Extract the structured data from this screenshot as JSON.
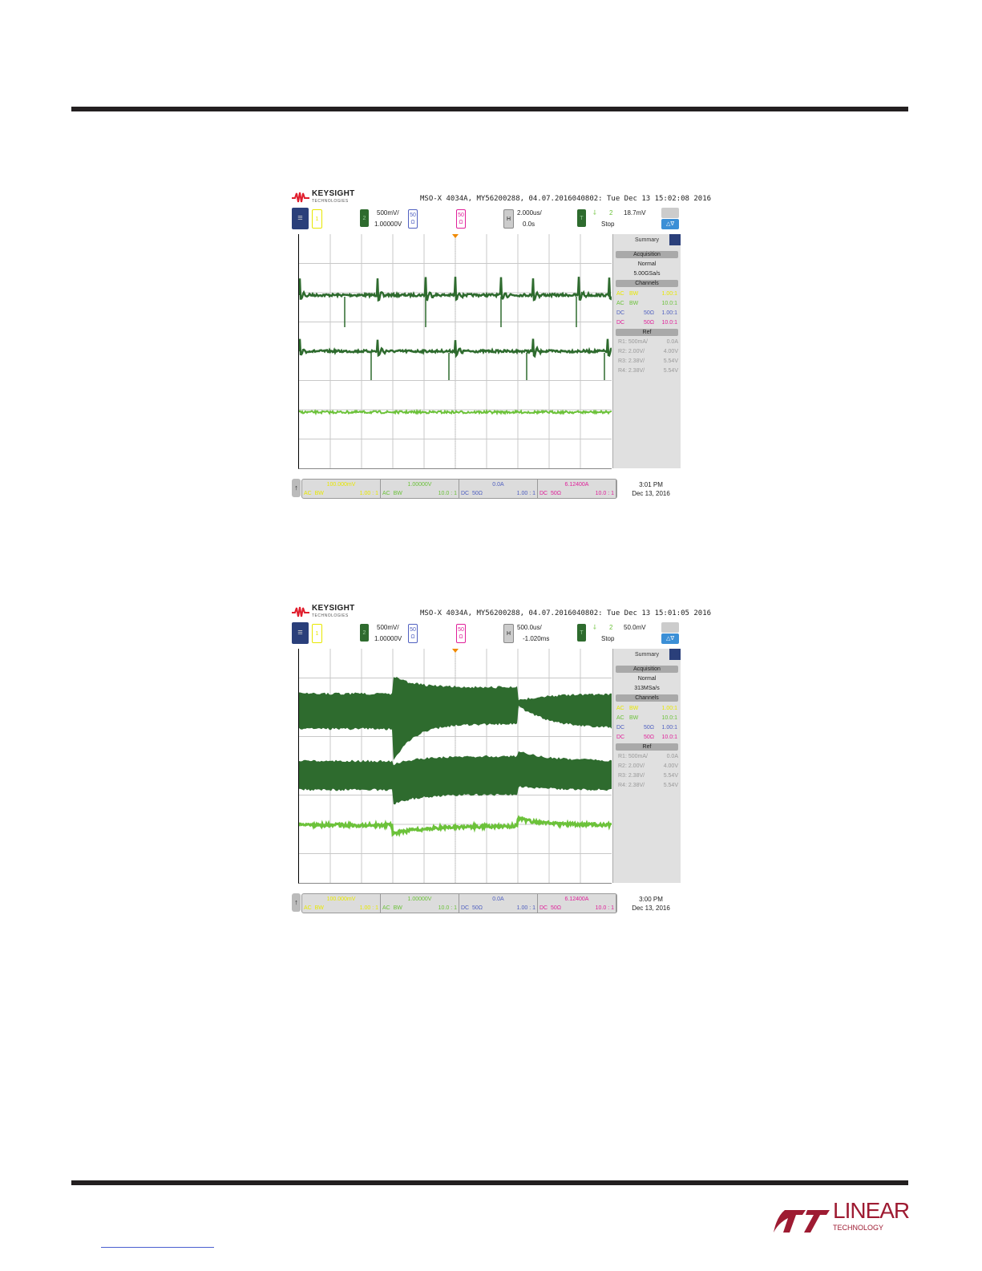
{
  "brand": {
    "keysight": "KEYSIGHT",
    "keysight_sub": "TECHNOLOGIES",
    "linear": "LINEAR",
    "linear_sub": "TECHNOLOGY"
  },
  "colors": {
    "ch1": "#e8e800",
    "ch2": "#2e6b2e",
    "ch2_light": "#6cc23a",
    "ch3": "#5060c0",
    "ch4": "#e0209a"
  },
  "scopes": [
    {
      "header": "MSO-X 4034A, MY56200288, 04.07.2016040802: Tue Dec 13 15:02:08 2016",
      "ch1": "1",
      "ch2": "2",
      "ch2_scale": "500mV/",
      "ch2_offset": "1.00000V",
      "ch3_imp": "50",
      "ch3_ohm": "Ω",
      "ch4_imp": "50",
      "ch4_ohm": "Ω",
      "h": "H",
      "h_scale": "2.000us/",
      "h_delay": "0.0s",
      "t": "T",
      "trig_src": "2",
      "trig_level": "18.7mV",
      "state": "Stop",
      "summary": "Summary",
      "acq": "Acquisition",
      "mode": "Normal",
      "rate": "5.00GSa/s",
      "channels": "Channels",
      "chrows": [
        [
          "AC",
          "BW",
          "",
          "1.00:1"
        ],
        [
          "AC",
          "BW",
          "",
          "10.0:1"
        ],
        [
          "DC",
          "",
          "50Ω",
          "1.00:1"
        ],
        [
          "DC",
          "",
          "50Ω",
          "10.0:1"
        ]
      ],
      "ref": "Ref",
      "refs": [
        [
          "R1: 500mA/",
          "0.0A"
        ],
        [
          "R2: 2.00V/",
          "4.00V"
        ],
        [
          "R3: 2.38V/",
          "5.54V"
        ],
        [
          "R4: 2.38V/",
          "5.54V"
        ]
      ],
      "bottom": [
        [
          "100.000mV",
          "AC",
          "BW",
          "1.00 : 1"
        ],
        [
          "1.00000V",
          "AC",
          "BW",
          "10.0 : 1"
        ],
        [
          "0.0A",
          "DC",
          "50Ω",
          "1.00 : 1"
        ],
        [
          "6.12400A",
          "DC",
          "50Ω",
          "10.0 : 1"
        ]
      ],
      "time": "3:01 PM",
      "date": "Dec 13, 2016"
    },
    {
      "header": "MSO-X 4034A, MY56200288, 04.07.2016040802: Tue Dec 13 15:01:05 2016",
      "ch1": "1",
      "ch2": "2",
      "ch2_scale": "500mV/",
      "ch2_offset": "1.00000V",
      "ch3_imp": "50",
      "ch3_ohm": "Ω",
      "ch4_imp": "50",
      "ch4_ohm": "Ω",
      "h": "H",
      "h_scale": "500.0us/",
      "h_delay": "-1.020ms",
      "t": "T",
      "trig_src": "2",
      "trig_level": "50.0mV",
      "state": "Stop",
      "summary": "Summary",
      "acq": "Acquisition",
      "mode": "Normal",
      "rate": "313MSa/s",
      "channels": "Channels",
      "chrows": [
        [
          "AC",
          "BW",
          "",
          "1.00:1"
        ],
        [
          "AC",
          "BW",
          "",
          "10.0:1"
        ],
        [
          "DC",
          "",
          "50Ω",
          "1.00:1"
        ],
        [
          "DC",
          "",
          "50Ω",
          "10.0:1"
        ]
      ],
      "ref": "Ref",
      "refs": [
        [
          "R1: 500mA/",
          "0.0A"
        ],
        [
          "R2: 2.00V/",
          "4.00V"
        ],
        [
          "R3: 2.38V/",
          "5.54V"
        ],
        [
          "R4: 2.38V/",
          "5.54V"
        ]
      ],
      "bottom": [
        [
          "100.000mV",
          "AC",
          "BW",
          "1.00 : 1"
        ],
        [
          "1.00000V",
          "AC",
          "BW",
          "10.0 : 1"
        ],
        [
          "0.0A",
          "DC",
          "50Ω",
          "1.00 : 1"
        ],
        [
          "6.12400A",
          "DC",
          "50Ω",
          "10.0 : 1"
        ]
      ],
      "time": "3:00 PM",
      "date": "Dec 13, 2016"
    }
  ]
}
